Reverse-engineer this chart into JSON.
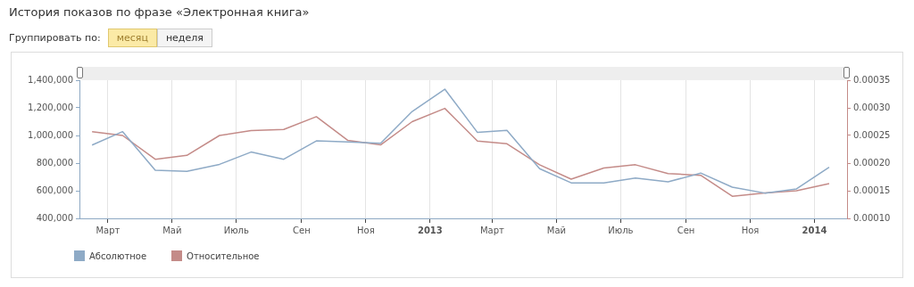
{
  "chart_data": {
    "type": "line",
    "title": "История показов по фразе «Электронная книга»",
    "annotations": [
      "Группировать по:",
      "месяц",
      "неделя"
    ],
    "x": [
      "2012-02-15",
      "2012-03-15",
      "2012-04-15",
      "2012-05-15",
      "2012-06-15",
      "2012-07-15",
      "2012-08-15",
      "2012-09-15",
      "2012-10-15",
      "2012-11-15",
      "2012-12-15",
      "2013-01-15",
      "2013-02-15",
      "2013-03-15",
      "2013-04-15",
      "2013-05-15",
      "2013-06-15",
      "2013-07-15",
      "2013-08-15",
      "2013-09-15",
      "2013-10-15",
      "2013-11-15",
      "2013-12-15",
      "2014-01-15"
    ],
    "series": [
      {
        "name": "Абсолютное",
        "color": "#8eaac6",
        "values": [
          931000,
          1028000,
          748000,
          740000,
          791000,
          880000,
          828000,
          961000,
          953000,
          944000,
          1174000,
          1335000,
          1022000,
          1037000,
          760000,
          657000,
          657000,
          692000,
          664000,
          728000,
          626000,
          583000,
          613000,
          770000
        ]
      },
      {
        "name": "Относительное",
        "color": "#c48b88",
        "axis": "y2",
        "values": [
          0.000257,
          0.00025,
          0.000207,
          0.000214,
          0.00025,
          0.000259,
          0.000261,
          0.000284,
          0.000241,
          0.000233,
          0.000275,
          0.000299,
          0.00024,
          0.000235,
          0.000197,
          0.000171,
          0.000191,
          0.000197,
          0.000181,
          0.000178,
          0.00014,
          0.000146,
          0.00015,
          0.000163
        ]
      }
    ],
    "xlim": [
      "2012-02-03",
      "2014-02-01"
    ],
    "xticks": [
      {
        "value": "2012-03-01",
        "label": "Март"
      },
      {
        "value": "2012-05-01",
        "label": "Май"
      },
      {
        "value": "2012-07-01",
        "label": "Июль"
      },
      {
        "value": "2012-09-01",
        "label": "Сен"
      },
      {
        "value": "2012-11-01",
        "label": "Ноя"
      },
      {
        "value": "2013-01-01",
        "label": "2013"
      },
      {
        "value": "2013-03-01",
        "label": "Март"
      },
      {
        "value": "2013-05-01",
        "label": "Май"
      },
      {
        "value": "2013-07-01",
        "label": "Июль"
      },
      {
        "value": "2013-09-01",
        "label": "Сен"
      },
      {
        "value": "2013-11-01",
        "label": "Ноя"
      },
      {
        "value": "2014-01-01",
        "label": "2014"
      }
    ],
    "ylim": [
      400000,
      1400000
    ],
    "yticks": [
      {
        "value": 400000,
        "label": "400,000"
      },
      {
        "value": 600000,
        "label": "600,000"
      },
      {
        "value": 800000,
        "label": "800,000"
      },
      {
        "value": 1000000,
        "label": "1,000,000"
      },
      {
        "value": 1200000,
        "label": "1,200,000"
      },
      {
        "value": 1400000,
        "label": "1,400,000"
      }
    ],
    "y2lim": [
      0.0001,
      0.00035
    ],
    "y2ticks": [
      {
        "value": 0.0001,
        "label": "0.00010"
      },
      {
        "value": 0.00015,
        "label": "0.00015"
      },
      {
        "value": 0.0002,
        "label": "0.00020"
      },
      {
        "value": 0.00025,
        "label": "0.00025"
      },
      {
        "value": 0.0003,
        "label": "0.00030"
      },
      {
        "value": 0.00035,
        "label": "0.00035"
      }
    ],
    "grid": "x",
    "legend": "bottom",
    "marker": "none"
  }
}
